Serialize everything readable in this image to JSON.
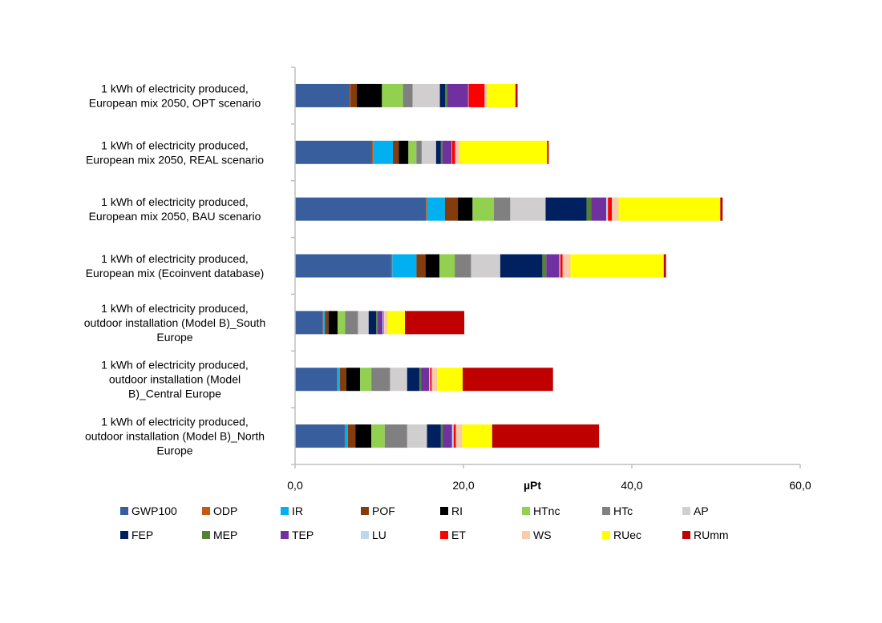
{
  "chart_data": {
    "type": "bar",
    "orientation": "horizontal",
    "stacked": true,
    "title": "",
    "xlabel": "µPt",
    "ylabel": "",
    "xlim": [
      0,
      60
    ],
    "x_ticks": [
      "0,0",
      "20,0",
      "40,0",
      "60,0"
    ],
    "x_tick_values": [
      0,
      20,
      40,
      60
    ],
    "grid": false,
    "legend_position": "bottom",
    "categories": [
      [
        "1 kWh of electricity produced,",
        "European mix 2050, OPT scenario"
      ],
      [
        "1 kWh of electricity produced,",
        "European mix 2050, REAL scenario"
      ],
      [
        "1 kWh of electricity produced,",
        "European mix 2050, BAU scenario"
      ],
      [
        "1 kWh of electricity produced,",
        "European mix (Ecoinvent database)"
      ],
      [
        "1 kWh of electricity produced,",
        "outdoor installation (Model B)_South",
        "Europe"
      ],
      [
        "1 kWh of electricity produced,",
        "outdoor installation (Model",
        "B)_Central Europe"
      ],
      [
        "1 kWh of electricity produced,",
        "outdoor installation (Model B)_North",
        "Europe"
      ]
    ],
    "series": [
      {
        "name": "GWP100",
        "color": "#385E9E",
        "values": [
          6.48,
          9.14,
          15.53,
          11.42,
          3.3,
          5.02,
          5.9
        ]
      },
      {
        "name": "ODP",
        "color": "#C55A11",
        "values": [
          0.1,
          0.13,
          0.13,
          0.13,
          0.05,
          0.05,
          0.05
        ]
      },
      {
        "name": "IR",
        "color": "#00B0F0",
        "values": [
          0.0,
          2.35,
          2.14,
          2.87,
          0.19,
          0.25,
          0.32
        ]
      },
      {
        "name": "POF",
        "color": "#843C0C",
        "values": [
          0.76,
          0.7,
          1.54,
          1.07,
          0.44,
          0.76,
          0.89
        ]
      },
      {
        "name": "RI",
        "color": "#000000",
        "values": [
          2.98,
          1.14,
          1.74,
          1.67,
          1.08,
          1.65,
          1.9
        ]
      },
      {
        "name": "HTnc",
        "color": "#92D050",
        "values": [
          2.5,
          0.95,
          2.54,
          1.8,
          0.89,
          1.33,
          1.59
        ]
      },
      {
        "name": "HTc",
        "color": "#808080",
        "values": [
          1.14,
          0.63,
          1.94,
          1.94,
          1.52,
          2.22,
          2.67
        ]
      },
      {
        "name": "AP",
        "color": "#D0CECE",
        "values": [
          3.24,
          1.71,
          4.2,
          3.47,
          1.27,
          2.03,
          2.35
        ]
      },
      {
        "name": "FEP",
        "color": "#002060",
        "values": [
          0.64,
          0.57,
          4.87,
          5.0,
          0.89,
          1.46,
          1.65
        ]
      },
      {
        "name": "MEP",
        "color": "#548235",
        "values": [
          0.25,
          0.19,
          0.53,
          0.47,
          0.19,
          0.19,
          0.25
        ]
      },
      {
        "name": "TEP",
        "color": "#7030A0",
        "values": [
          2.47,
          1.08,
          1.8,
          1.54,
          0.57,
          0.95,
          1.08
        ]
      },
      {
        "name": "LU",
        "color": "#BDD7EE",
        "values": [
          0.05,
          0.05,
          0.2,
          0.13,
          0.13,
          0.13,
          0.19
        ]
      },
      {
        "name": "ET",
        "color": "#FF0000",
        "values": [
          1.9,
          0.38,
          0.47,
          0.27,
          0.06,
          0.19,
          0.25
        ]
      },
      {
        "name": "WS",
        "color": "#F8CBAD",
        "values": [
          0.3,
          0.57,
          0.8,
          0.93,
          0.44,
          0.63,
          0.76
        ]
      },
      {
        "name": "RUec",
        "color": "#FFFF00",
        "values": [
          3.37,
          10.35,
          12.08,
          11.08,
          2.03,
          3.05,
          3.56
        ]
      },
      {
        "name": "RUmm",
        "color": "#C00000",
        "values": [
          0.25,
          0.19,
          0.27,
          0.27,
          7.05,
          10.73,
          12.7
        ]
      }
    ]
  }
}
